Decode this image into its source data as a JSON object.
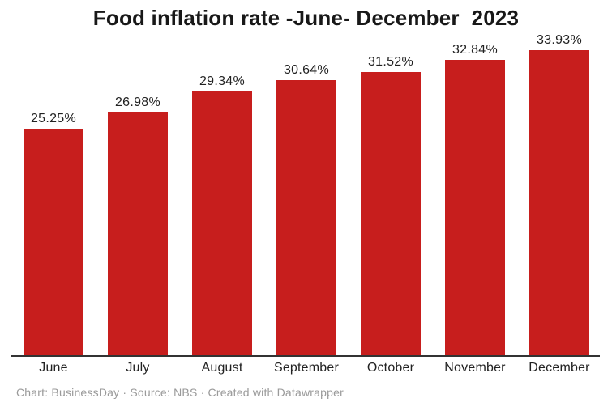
{
  "title": "Food inflation rate -June- December  2023",
  "footer": "Chart: BusinessDay · Source: NBS · Created with Datawrapper",
  "colors": {
    "bar": "#c71e1d",
    "axis": "#333333",
    "title": "#181818",
    "label": "#222222",
    "footer": "#9a9a9a",
    "background": "#ffffff"
  },
  "chart_data": {
    "type": "bar",
    "title": "Food inflation rate -June- December  2023",
    "categories": [
      "June",
      "July",
      "August",
      "September",
      "October",
      "November",
      "December"
    ],
    "values": [
      25.25,
      26.98,
      29.34,
      30.64,
      31.52,
      32.84,
      33.93
    ],
    "value_labels": [
      "25.25%",
      "26.98%",
      "29.34%",
      "30.64%",
      "31.52%",
      "32.84%",
      "33.93%"
    ],
    "xlabel": "",
    "ylabel": "",
    "ylim": [
      0,
      33.93
    ],
    "grid": false,
    "legend": false,
    "y_axis_ticks_visible": false,
    "bar_color": "#c71e1d",
    "attribution": "Chart: BusinessDay · Source: NBS · Created with Datawrapper"
  }
}
